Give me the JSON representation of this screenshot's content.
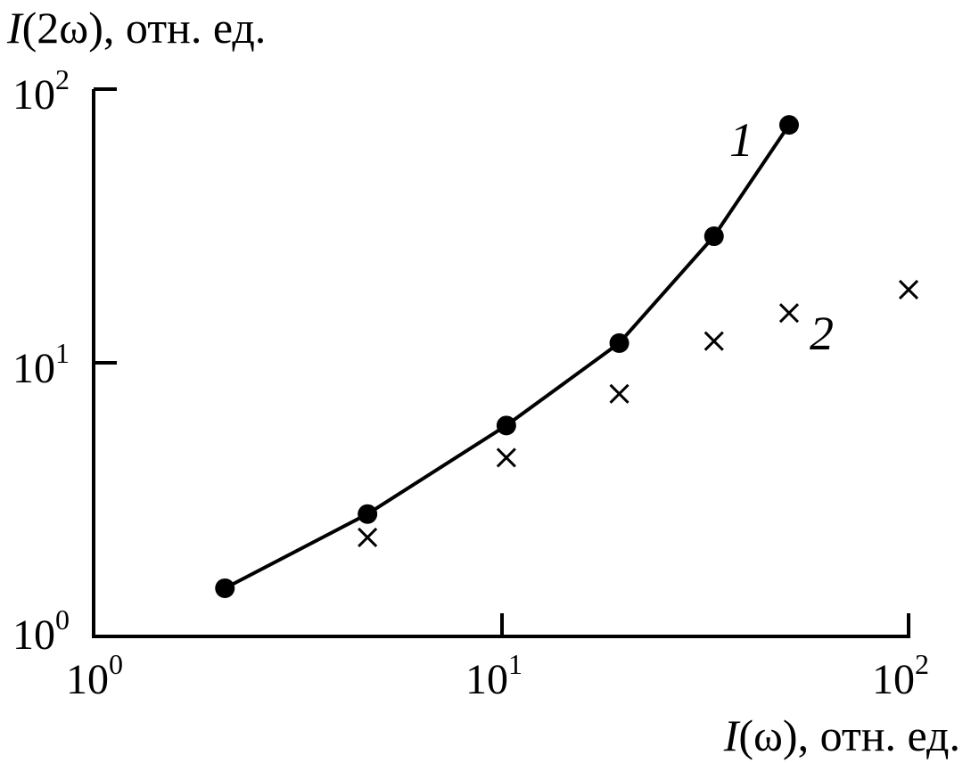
{
  "chart_data": {
    "type": "scatter",
    "xscale": "log",
    "yscale": "log",
    "xlim": [
      1,
      100
    ],
    "ylim": [
      1,
      100
    ],
    "grid": false,
    "xlabel": {
      "italic": "I",
      "rest": "(ω), отн. ед."
    },
    "ylabel": {
      "italic": "I",
      "rest": "(2ω), отн. ед."
    },
    "x_ticks": [
      {
        "value": 1,
        "base": "10",
        "exp": "0"
      },
      {
        "value": 10,
        "base": "10",
        "exp": "1"
      },
      {
        "value": 100,
        "base": "10",
        "exp": "2"
      }
    ],
    "y_ticks": [
      {
        "value": 1,
        "base": "10",
        "exp": "0"
      },
      {
        "value": 10,
        "base": "10",
        "exp": "1"
      },
      {
        "value": 100,
        "base": "10",
        "exp": "2"
      }
    ],
    "series": [
      {
        "label": "1",
        "marker": "filled-circle",
        "connected": true,
        "points": [
          [
            2.1,
            1.5
          ],
          [
            4.7,
            2.8
          ],
          [
            10.3,
            5.9
          ],
          [
            19.5,
            11.8
          ],
          [
            33.3,
            29.0
          ],
          [
            50.9,
            74.0
          ]
        ]
      },
      {
        "label": "2",
        "marker": "cross",
        "connected": false,
        "points": [
          [
            4.7,
            2.3
          ],
          [
            10.3,
            4.5
          ],
          [
            19.5,
            7.7
          ],
          [
            33.3,
            12.0
          ],
          [
            50.9,
            15.2
          ],
          [
            100.0,
            18.5
          ]
        ]
      }
    ],
    "colors": {
      "ink": "#000000",
      "background": "#ffffff"
    }
  }
}
